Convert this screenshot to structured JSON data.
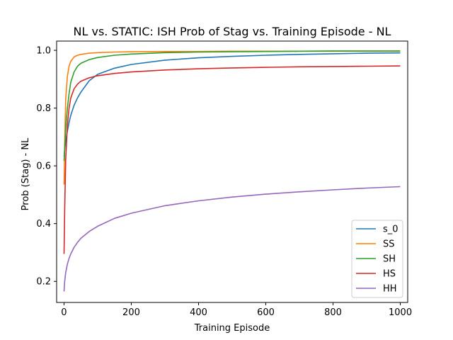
{
  "chart_data": {
    "type": "line",
    "title": "NL vs. STATIC: ISH Prob of Stag vs. Training Episode - NL",
    "xlabel": "Training Episode",
    "ylabel": "Prob (Stag) - NL",
    "xlim": [
      -22,
      1022
    ],
    "ylim": [
      0.127,
      1.032
    ],
    "xticks": [
      0,
      200,
      400,
      600,
      800,
      1000
    ],
    "yticks": [
      0.2,
      0.4,
      0.6,
      0.8,
      1.0
    ],
    "xtick_labels": [
      "0",
      "200",
      "400",
      "600",
      "800",
      "1000"
    ],
    "ytick_labels": [
      "0.2",
      "0.4",
      "0.6",
      "0.8",
      "1.0"
    ],
    "grid": false,
    "legend_position": "lower-right",
    "x": [
      0,
      2,
      5,
      10,
      15,
      20,
      30,
      40,
      50,
      75,
      100,
      150,
      200,
      300,
      400,
      500,
      600,
      700,
      800,
      900,
      1000
    ],
    "series": [
      {
        "name": "s_0",
        "color": "#1f77b4",
        "values": [
          0.632,
          0.655,
          0.685,
          0.72,
          0.75,
          0.775,
          0.81,
          0.835,
          0.855,
          0.895,
          0.917,
          0.938,
          0.951,
          0.966,
          0.974,
          0.979,
          0.983,
          0.986,
          0.988,
          0.99,
          0.991
        ]
      },
      {
        "name": "SS",
        "color": "#ff7f0e",
        "values": [
          0.535,
          0.68,
          0.83,
          0.91,
          0.945,
          0.962,
          0.977,
          0.983,
          0.986,
          0.99,
          0.992,
          0.994,
          0.995,
          0.996,
          0.996,
          0.997,
          0.997,
          0.997,
          0.997,
          0.997,
          0.997
        ]
      },
      {
        "name": "SH",
        "color": "#2ca02c",
        "values": [
          0.617,
          0.66,
          0.73,
          0.8,
          0.85,
          0.89,
          0.925,
          0.945,
          0.955,
          0.968,
          0.975,
          0.983,
          0.987,
          0.992,
          0.994,
          0.995,
          0.996,
          0.997,
          0.998,
          0.998,
          0.998
        ]
      },
      {
        "name": "HS",
        "color": "#d62728",
        "values": [
          0.295,
          0.45,
          0.62,
          0.74,
          0.8,
          0.835,
          0.867,
          0.883,
          0.893,
          0.905,
          0.912,
          0.92,
          0.925,
          0.932,
          0.936,
          0.939,
          0.941,
          0.943,
          0.944,
          0.945,
          0.946
        ]
      },
      {
        "name": "HH",
        "color": "#9467bd",
        "values": [
          0.165,
          0.2,
          0.23,
          0.26,
          0.28,
          0.295,
          0.318,
          0.335,
          0.349,
          0.373,
          0.391,
          0.418,
          0.436,
          0.462,
          0.479,
          0.492,
          0.502,
          0.51,
          0.517,
          0.523,
          0.528
        ]
      }
    ]
  }
}
